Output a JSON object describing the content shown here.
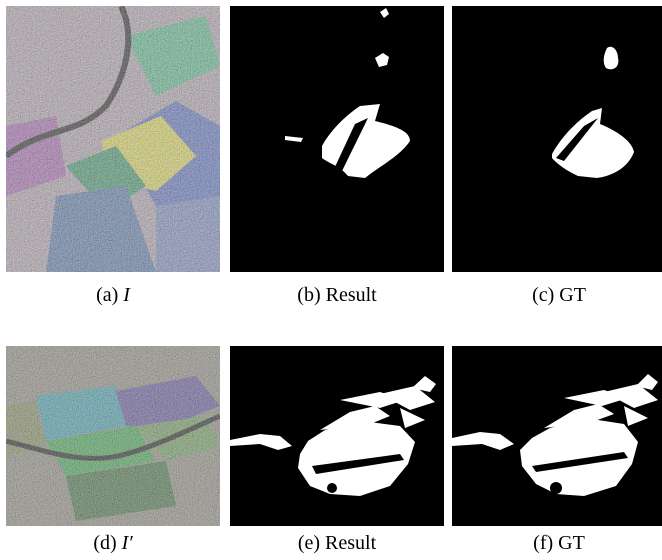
{
  "figure": {
    "rows": [
      {
        "panels": [
          {
            "id": "a",
            "label": "(a)",
            "symbol": "I",
            "kind": "sar"
          },
          {
            "id": "b",
            "label": "(b) Result",
            "kind": "mask"
          },
          {
            "id": "c",
            "label": "(c) GT",
            "kind": "mask"
          }
        ]
      },
      {
        "panels": [
          {
            "id": "d",
            "label": "(d)",
            "symbol": "I′",
            "kind": "sar"
          },
          {
            "id": "e",
            "label": "(e) Result",
            "kind": "mask"
          },
          {
            "id": "f",
            "label": "(f) GT",
            "kind": "mask"
          }
        ]
      }
    ]
  }
}
